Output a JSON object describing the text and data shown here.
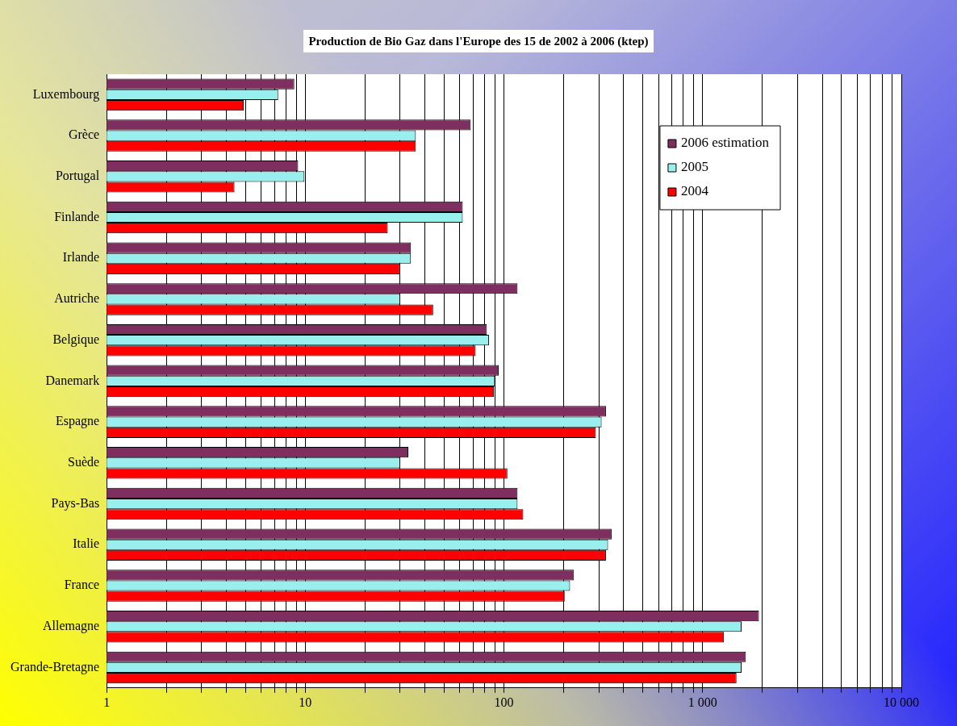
{
  "chart_data": {
    "type": "bar",
    "orientation": "horizontal",
    "log": "x",
    "title": "Production de Bio Gaz dans l'Europe des 15 de 2002 à 2006 (ktep)",
    "categories": [
      "Luxembourg",
      "Grèce",
      "Portugal",
      "Finlande",
      "Irlande",
      "Autriche",
      "Belgique",
      "Danemark",
      "Espagne",
      "Suède",
      "Pays-Bas",
      "Italie",
      "France",
      "Allemagne",
      "Grande-Bretagne"
    ],
    "series": [
      {
        "name": "2006 estimation",
        "color": "#7f2f5f",
        "values": [
          8.8,
          68,
          9.2,
          62,
          34,
          117,
          82,
          94,
          326,
          33,
          117,
          348,
          225,
          1920,
          1650
        ]
      },
      {
        "name": "2005",
        "color": "#99eeee",
        "values": [
          7.3,
          36,
          9.9,
          62,
          34,
          30,
          84,
          90,
          310,
          30,
          117,
          334,
          215,
          1570,
          1570
        ]
      },
      {
        "name": "2004",
        "color": "#ff0000",
        "values": [
          4.9,
          36,
          4.4,
          26,
          30,
          44,
          72,
          89,
          290,
          104,
          125,
          326,
          202,
          1280,
          1480
        ]
      }
    ],
    "xlim": [
      1,
      10000
    ],
    "xticks": [
      1,
      {
        "value": 2,
        "label": null
      },
      {
        "value": 3,
        "label": null
      },
      {
        "value": 4,
        "label": null
      },
      {
        "value": 5,
        "label": null
      },
      {
        "value": 6,
        "label": null
      },
      {
        "value": 7,
        "label": null
      },
      {
        "value": 8,
        "label": null
      },
      {
        "value": 9,
        "label": null
      },
      10,
      {
        "value": 20,
        "label": null
      },
      {
        "value": 30,
        "label": null
      },
      {
        "value": 40,
        "label": null
      },
      {
        "value": 50,
        "label": null
      },
      {
        "value": 60,
        "label": null
      },
      {
        "value": 70,
        "label": null
      },
      {
        "value": 80,
        "label": null
      },
      {
        "value": 90,
        "label": null
      },
      100,
      {
        "value": 200,
        "label": null
      },
      {
        "value": 300,
        "label": null
      },
      {
        "value": 400,
        "label": null
      },
      {
        "value": 500,
        "label": null
      },
      {
        "value": 600,
        "label": null
      },
      {
        "value": 700,
        "label": null
      },
      {
        "value": 800,
        "label": null
      },
      {
        "value": 900,
        "label": null
      },
      {
        "value": 1000,
        "label": "1 000"
      },
      {
        "value": 2000,
        "label": null
      },
      {
        "value": 3000,
        "label": null
      },
      {
        "value": 4000,
        "label": null
      },
      {
        "value": 5000,
        "label": null
      },
      {
        "value": 6000,
        "label": null
      },
      {
        "value": 7000,
        "label": null
      },
      {
        "value": 8000,
        "label": null
      },
      {
        "value": 9000,
        "label": null
      },
      {
        "value": 10000,
        "label": "10 000"
      }
    ],
    "grid": "x",
    "legend": "top right"
  }
}
